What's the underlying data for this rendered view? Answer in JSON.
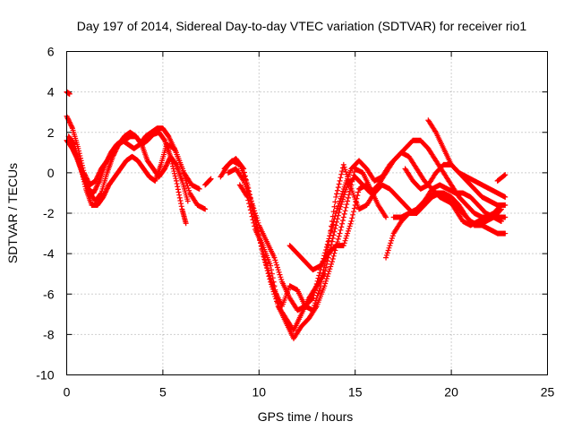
{
  "chart_data": {
    "type": "scatter",
    "title": "Day 197 of 2014, Sidereal Day-to-day VTEC variation (SDTVAR) for receiver rio1",
    "xlabel": "GPS time / hours",
    "ylabel": "SDTVAR / TECUs",
    "xlim": [
      0,
      25
    ],
    "ylim": [
      -10,
      6
    ],
    "xticks": [
      0,
      5,
      10,
      15,
      20,
      25
    ],
    "yticks": [
      -10,
      -8,
      -6,
      -4,
      -2,
      0,
      2,
      4,
      6
    ],
    "grid": true,
    "marker": "plus",
    "color": "#ff0000",
    "series": [
      {
        "x": [
          0.0,
          0.3,
          0.6,
          0.9,
          1.2,
          1.5,
          1.8,
          2.1,
          2.4,
          2.7,
          3.0,
          3.3,
          3.6,
          3.9,
          4.2,
          4.5,
          4.8,
          5.1,
          5.4,
          5.7,
          6.0,
          6.2
        ],
        "y": [
          1.6,
          1.2,
          0.6,
          -0.2,
          -1.0,
          -1.4,
          -1.0,
          0.0,
          0.8,
          1.4,
          1.8,
          2.0,
          1.8,
          1.4,
          1.6,
          1.9,
          2.0,
          1.6,
          0.8,
          -0.4,
          -1.8,
          -2.5
        ]
      },
      {
        "x": [
          0.0,
          0.3,
          0.6,
          0.9,
          1.2,
          1.5,
          1.8,
          2.1,
          2.4,
          2.7,
          3.0,
          3.3,
          3.6,
          3.9,
          4.2,
          4.5,
          4.8,
          5.1,
          5.4,
          5.7,
          6.0,
          6.3
        ],
        "y": [
          2.8,
          2.2,
          1.2,
          0.0,
          -0.6,
          -0.4,
          0.2,
          0.6,
          1.0,
          1.4,
          1.6,
          1.8,
          1.8,
          1.4,
          0.6,
          0.2,
          -0.2,
          0.2,
          0.8,
          0.4,
          -0.4,
          -1.4
        ]
      },
      {
        "x": [
          0.1,
          0.4,
          0.7,
          1.0,
          1.3,
          1.6,
          1.9,
          2.2,
          2.5,
          2.8,
          3.1,
          3.4,
          3.7,
          4.0,
          4.3,
          4.6,
          4.9,
          5.2,
          5.6,
          6.0,
          6.4,
          6.8,
          7.2
        ],
        "y": [
          1.8,
          1.4,
          0.4,
          -0.8,
          -1.6,
          -1.6,
          -1.2,
          -0.6,
          -0.2,
          0.2,
          0.6,
          0.8,
          0.6,
          0.2,
          -0.2,
          -0.4,
          0.4,
          1.4,
          1.2,
          0.2,
          -1.0,
          -1.6,
          -1.8
        ]
      },
      {
        "x": [
          0.2,
          0.5,
          0.8,
          1.1,
          1.4,
          1.7,
          2.0,
          2.3,
          2.6,
          2.9,
          3.2,
          3.5,
          3.8,
          4.1,
          4.4,
          4.7,
          5.0,
          5.3,
          5.7,
          6.1,
          6.5,
          6.9
        ],
        "y": [
          1.4,
          0.8,
          0.0,
          -0.8,
          -1.0,
          -0.4,
          0.4,
          1.0,
          1.4,
          1.6,
          1.4,
          1.2,
          1.4,
          1.8,
          2.0,
          2.2,
          2.2,
          1.8,
          1.0,
          0.0,
          -0.6,
          -0.8
        ]
      },
      {
        "x": [
          7.2,
          7.5
        ],
        "y": [
          -0.6,
          -0.3
        ]
      },
      {
        "x": [
          8.0,
          8.4,
          8.8,
          9.2,
          9.6,
          10.0,
          10.4,
          10.8,
          11.2,
          11.6,
          12.0,
          12.4,
          12.8,
          13.2,
          13.6,
          14.0,
          14.4,
          14.8,
          15.2,
          15.6,
          16.0,
          16.4,
          16.8,
          17.2,
          17.6,
          18.0,
          18.4,
          18.8,
          19.2,
          19.6,
          20.0,
          20.4,
          20.8,
          21.2,
          21.6,
          22.0,
          22.4,
          22.8
        ],
        "y": [
          -0.2,
          0.4,
          0.7,
          0.2,
          -1.6,
          -3.2,
          -4.6,
          -5.8,
          -6.6,
          -5.6,
          -5.8,
          -6.6,
          -6.8,
          -5.6,
          -3.6,
          -1.2,
          0.4,
          -0.8,
          -1.8,
          -1.6,
          -1.0,
          -0.6,
          -0.8,
          -1.2,
          -1.6,
          -2.0,
          -1.6,
          -1.2,
          -1.0,
          -1.0,
          -1.2,
          -1.6,
          -2.2,
          -2.6,
          -2.6,
          -2.8,
          -3.0,
          -3.0
        ]
      },
      {
        "x": [
          8.2,
          8.6,
          9.0,
          9.4,
          9.8,
          10.2,
          10.6,
          11.0,
          11.4,
          11.8,
          12.2,
          12.6,
          13.0,
          13.4,
          13.8,
          14.2,
          14.6,
          15.0,
          15.4,
          15.8,
          16.2,
          16.6,
          17.0,
          17.4,
          17.8,
          18.2,
          18.6,
          19.0,
          19.4,
          19.8,
          20.2,
          20.6,
          21.0,
          21.4,
          21.8,
          22.2,
          22.6
        ],
        "y": [
          0.2,
          0.6,
          0.4,
          -0.6,
          -2.2,
          -4.0,
          -5.4,
          -6.6,
          -7.2,
          -7.8,
          -7.0,
          -6.2,
          -5.6,
          -5.0,
          -3.4,
          -1.8,
          -0.6,
          -0.2,
          -0.6,
          -1.0,
          -0.6,
          0.0,
          0.6,
          1.0,
          0.8,
          0.2,
          -0.4,
          -0.8,
          -1.2,
          -1.4,
          -1.6,
          -2.0,
          -2.4,
          -2.6,
          -2.4,
          -2.2,
          -1.8
        ]
      },
      {
        "x": [
          8.4,
          8.8,
          9.2,
          9.6,
          10.0,
          10.4,
          10.8,
          11.2,
          11.6,
          12.0,
          12.4,
          12.8,
          13.2,
          13.6,
          14.0,
          14.4,
          14.8,
          15.2,
          15.6,
          16.0,
          16.4,
          16.8,
          17.2,
          17.6,
          18.0,
          18.4,
          18.8,
          19.2,
          19.6,
          20.0,
          20.4,
          20.8,
          21.2,
          21.6,
          22.0,
          22.4,
          22.8
        ],
        "y": [
          0.0,
          0.2,
          -0.4,
          -1.4,
          -2.6,
          -3.4,
          -4.2,
          -5.4,
          -6.2,
          -6.8,
          -6.6,
          -6.2,
          -4.8,
          -3.4,
          -2.0,
          -0.8,
          0.2,
          0.6,
          0.2,
          -0.4,
          -0.2,
          0.4,
          0.8,
          1.2,
          1.6,
          1.6,
          1.2,
          0.6,
          0.0,
          -0.6,
          -1.2,
          -1.6,
          -2.0,
          -2.2,
          -2.2,
          -2.2,
          -2.2
        ]
      },
      {
        "x": [
          9.0,
          9.4,
          9.8,
          10.2,
          10.6,
          11.0,
          11.4,
          11.8,
          12.2,
          12.6,
          13.0,
          13.4,
          13.8,
          14.2,
          14.6,
          15.0,
          15.4,
          15.8,
          16.2,
          16.6
        ],
        "y": [
          -0.6,
          -1.2,
          -2.8,
          -3.6,
          -4.6,
          -6.6,
          -7.4,
          -8.2,
          -7.6,
          -7.2,
          -6.6,
          -5.6,
          -4.4,
          -3.0,
          -1.4,
          0.2,
          0.0,
          -0.8,
          -1.6,
          -2.2
        ]
      },
      {
        "x": [
          11.6,
          12.0,
          12.4,
          12.8,
          13.2,
          13.6,
          14.0,
          14.4,
          14.8,
          15.2,
          15.6,
          16.0
        ],
        "y": [
          -3.6,
          -4.0,
          -4.4,
          -4.8,
          -4.6,
          -4.0,
          -3.6,
          -3.6,
          -2.4,
          -0.8,
          -0.6,
          -1.0
        ]
      },
      {
        "x": [
          16.6,
          17.0,
          17.4,
          17.8,
          18.2,
          18.6,
          19.0,
          19.4,
          19.8,
          20.2,
          20.6,
          21.0,
          21.4,
          21.8,
          22.2,
          22.6
        ],
        "y": [
          -4.2,
          -3.0,
          -2.4,
          -2.0,
          -1.8,
          -1.4,
          -0.8,
          -0.6,
          -0.8,
          -1.0,
          -1.0,
          -1.2,
          -1.6,
          -2.0,
          -2.2,
          -2.4
        ]
      },
      {
        "x": [
          17.0,
          17.4,
          17.8,
          18.2,
          18.6,
          19.0,
          19.4,
          19.8,
          20.2,
          20.6,
          21.0,
          21.4,
          21.8,
          22.2,
          22.6
        ],
        "y": [
          -2.2,
          -2.2,
          -2.0,
          -2.0,
          -1.6,
          -1.2,
          -1.0,
          -1.2,
          -1.8,
          -2.4,
          -2.6,
          -2.4,
          -2.2,
          -2.0,
          -1.6
        ]
      },
      {
        "x": [
          17.6,
          18.0,
          18.4,
          18.8,
          19.2,
          19.6,
          20.0,
          20.4,
          20.8,
          21.2,
          21.6,
          22.0,
          22.4,
          22.8
        ],
        "y": [
          0.2,
          -0.4,
          -0.8,
          -0.6,
          0.0,
          0.4,
          0.4,
          0.0,
          -0.4,
          -0.8,
          -1.2,
          -1.4,
          -1.6,
          -1.6
        ]
      },
      {
        "x": [
          18.8,
          19.2,
          19.6,
          20.0,
          20.4,
          20.8,
          21.2,
          21.6,
          22.0,
          22.4,
          22.8
        ],
        "y": [
          2.6,
          2.0,
          1.2,
          0.4,
          0.0,
          -0.2,
          -0.4,
          -0.6,
          -0.8,
          -1.0,
          -1.2
        ]
      },
      {
        "x": [
          22.4,
          22.8
        ],
        "y": [
          -0.4,
          -0.1
        ]
      },
      {
        "x": [
          0.0,
          0.15
        ],
        "y": [
          4.0,
          3.9
        ]
      }
    ]
  }
}
